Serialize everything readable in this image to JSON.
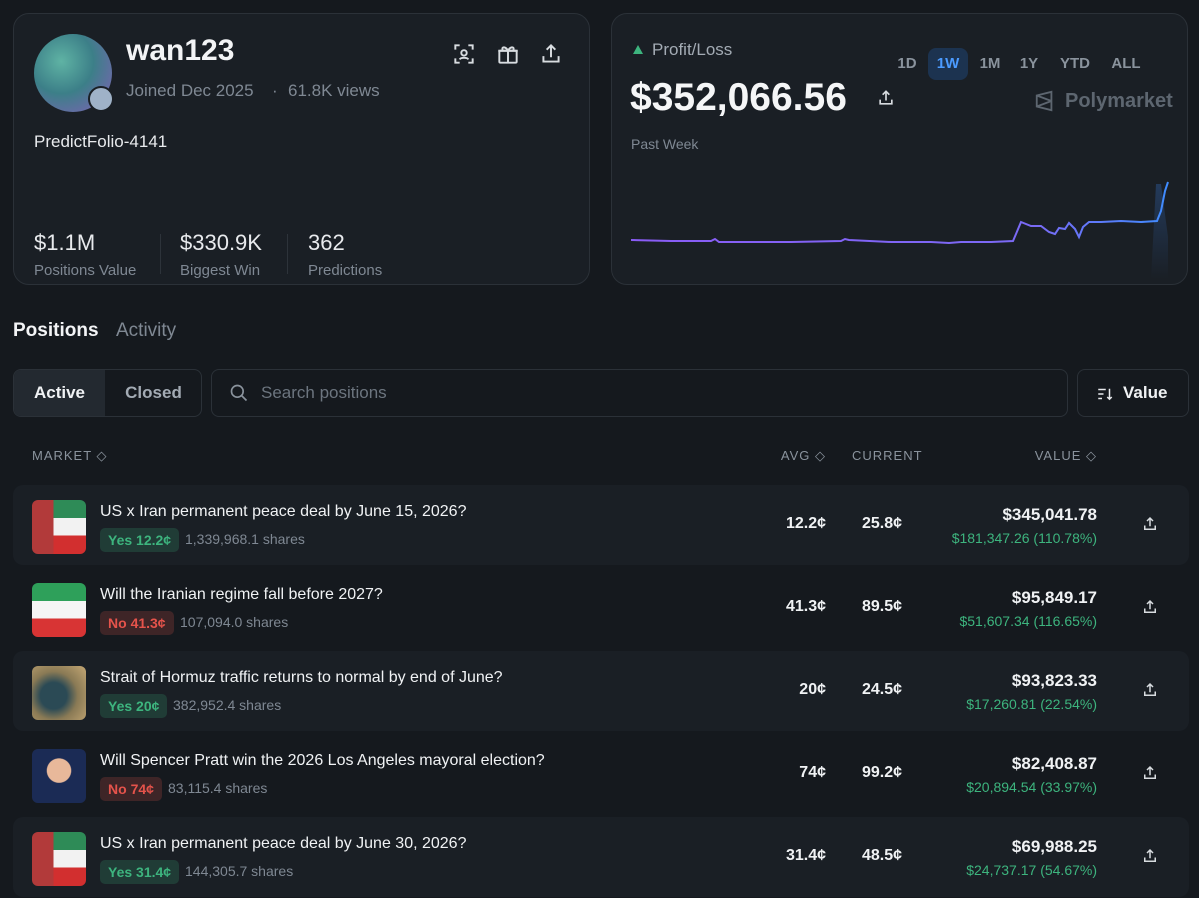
{
  "profile": {
    "username": "wan123",
    "joined": "Joined Dec 2025",
    "views": "61.8K views",
    "display_name": "PredictFolio-4141",
    "stats": [
      {
        "value": "$1.1M",
        "label": "Positions Value"
      },
      {
        "value": "$330.9K",
        "label": "Biggest Win"
      },
      {
        "value": "362",
        "label": "Predictions"
      }
    ]
  },
  "pnl": {
    "label": "Profit/Loss",
    "ranges": [
      "1D",
      "1W",
      "1M",
      "1Y",
      "YTD",
      "ALL"
    ],
    "active_range": "1W",
    "amount": "$352,066.56",
    "brand": "Polymarket",
    "period": "Past Week"
  },
  "tabs": [
    "Positions",
    "Activity"
  ],
  "filters": [
    "Active",
    "Closed"
  ],
  "search_placeholder": "Search positions",
  "sort": "Value",
  "table": {
    "columns": [
      "MARKET",
      "AVG",
      "CURRENT",
      "VALUE"
    ],
    "rows": [
      {
        "title": "US x Iran permanent peace deal by June 15, 2026?",
        "outcome": {
          "side": "Yes",
          "price": "12.2¢",
          "color": "#3db47e"
        },
        "shares": "1,339,968.1 shares",
        "avg": "12.2¢",
        "current": "25.8¢",
        "value": "$345,041.78",
        "pnl": "$181,347.26 (110.78%)"
      },
      {
        "title": "Will the Iranian regime fall before 2027?",
        "outcome": {
          "side": "No",
          "price": "41.3¢",
          "color": "#e5534b"
        },
        "shares": "107,094.0 shares",
        "avg": "41.3¢",
        "current": "89.5¢",
        "value": "$95,849.17",
        "pnl": "$51,607.34 (116.65%)"
      },
      {
        "title": "Strait of Hormuz traffic returns to normal by end of June?",
        "outcome": {
          "side": "Yes",
          "price": "20¢",
          "color": "#3db47e"
        },
        "shares": "382,952.4 shares",
        "avg": "20¢",
        "current": "24.5¢",
        "value": "$93,823.33",
        "pnl": "$17,260.81 (22.54%)"
      },
      {
        "title": "Will Spencer Pratt win the 2026 Los Angeles mayoral election?",
        "outcome": {
          "side": "No",
          "price": "74¢",
          "color": "#e5534b"
        },
        "shares": "83,115.4 shares",
        "avg": "74¢",
        "current": "99.2¢",
        "value": "$82,408.87",
        "pnl": "$20,894.54 (33.97%)"
      },
      {
        "title": "US x Iran permanent peace deal by June 30, 2026?",
        "outcome": {
          "side": "Yes",
          "price": "31.4¢",
          "color": "#3db47e"
        },
        "shares": "144,305.7 shares",
        "avg": "31.4¢",
        "current": "48.5¢",
        "value": "$69,988.25",
        "pnl": "$24,737.17 (54.67%)"
      }
    ]
  }
}
